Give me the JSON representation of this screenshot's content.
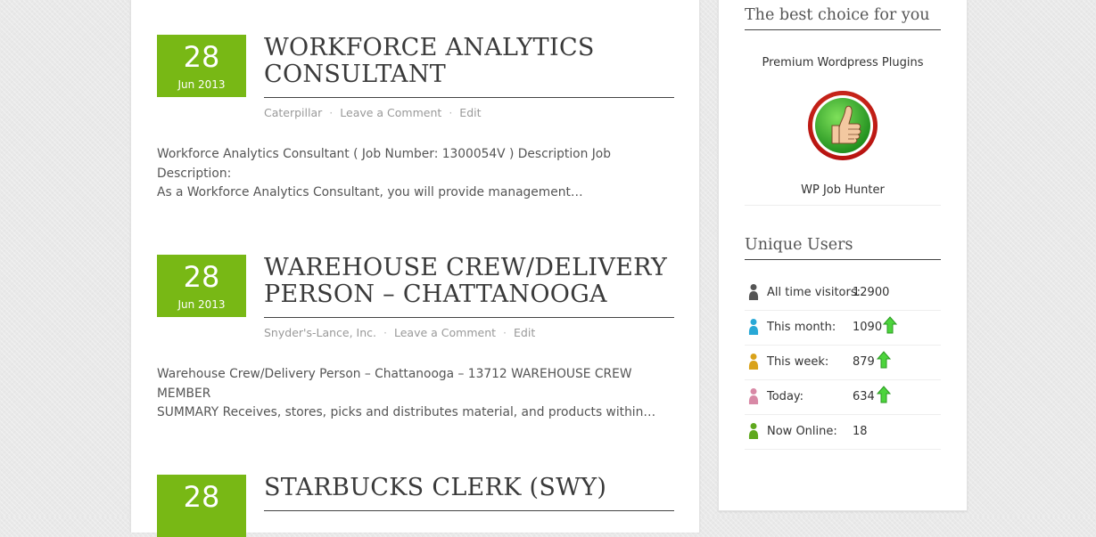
{
  "posts": [
    {
      "day": "28",
      "month": "Jun 2013",
      "title_line1": "WORKFORCE ANALYTICS",
      "title_line2": "CONSULTANT",
      "company": "Caterpillar",
      "comment_link": "Leave a Comment",
      "edit_link": "Edit",
      "excerpt_line1": "Workforce Analytics Consultant ( Job Number: 1300054V ) Description Job Description:",
      "excerpt_line2": "As a Workforce Analytics Consultant, you will provide management…"
    },
    {
      "day": "28",
      "month": "Jun 2013",
      "title_line1": "WAREHOUSE CREW/DELIVERY",
      "title_line2": "PERSON – CHATTANOOGA",
      "company": "Snyder's-Lance, Inc.",
      "comment_link": "Leave a Comment",
      "edit_link": "Edit",
      "excerpt_line1": "Warehouse Crew/Delivery Person – Chattanooga – 13712 WAREHOUSE CREW MEMBER",
      "excerpt_line2": "SUMMARY Receives, stores, picks and distributes material, and products within…"
    },
    {
      "day": "28",
      "title_line1": "STARBUCKS CLERK (SWY)"
    }
  ],
  "meta_separator": "·",
  "sidebar": {
    "promo_widget": {
      "title": "The best choice for you",
      "heading": "Premium Wordpress Plugins",
      "image_icon": "thumbs-up-badge",
      "caption": "WP Job Hunter"
    },
    "stats_widget": {
      "title": "Unique Users",
      "rows": [
        {
          "label": "All time visitors:",
          "value": "12900",
          "icon": "user-icon",
          "icon_color": "#555555",
          "arrow": false
        },
        {
          "label": "This month:",
          "value": "1090",
          "icon": "user-icon",
          "icon_color": "#29a8d6",
          "arrow": true
        },
        {
          "label": "This week:",
          "value": "879",
          "icon": "user-icon",
          "icon_color": "#d9a21a",
          "arrow": true
        },
        {
          "label": "Today:",
          "value": "634",
          "icon": "user-icon",
          "icon_color": "#d889a6",
          "arrow": true
        },
        {
          "label": "Now Online:",
          "value": "18",
          "icon": "user-icon",
          "icon_color": "#5fa81e",
          "arrow": false
        }
      ]
    }
  },
  "colors": {
    "accent": "#78b815",
    "page_background": "#e9e9e9",
    "panel_background": "#ffffff",
    "trend_up": "#4cd43c"
  }
}
